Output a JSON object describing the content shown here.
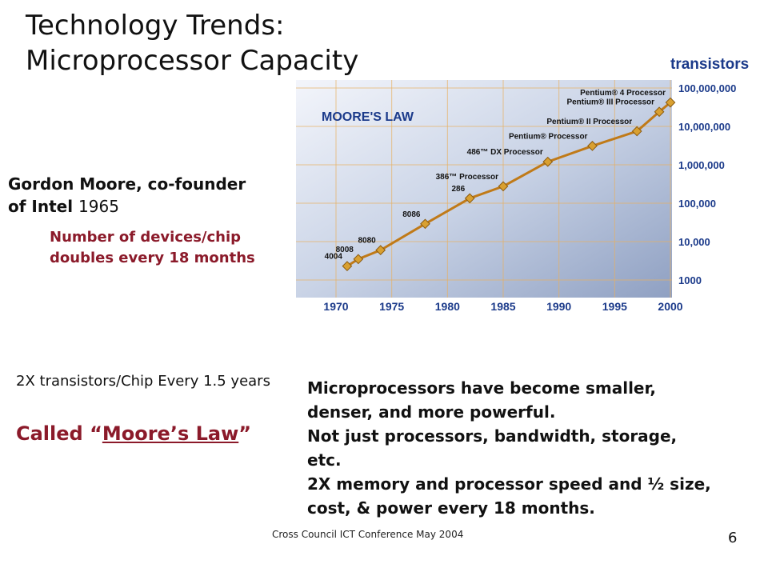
{
  "slide": {
    "title_line1": "Technology Trends:",
    "title_line2": "Microprocessor Capacity",
    "moore_heading": "Gordon Moore, co-founder of Intel",
    "moore_year": "1965",
    "moore_sub": "Number of devices/chip doubles every 18 months",
    "left_text": "2X transistors/Chip Every 1.5 years",
    "called_prefix": "Called ",
    "called_link": "Moore’s Law",
    "right_lines": [
      "Microprocessors have become smaller, denser, and more powerful.",
      "Not just processors, bandwidth, storage, etc.",
      "2X memory and processor speed and ½ size, cost, & power every 18 months."
    ],
    "footer": "Cross Council ICT Conference May 2004",
    "page_number": "6"
  },
  "chart_data": {
    "type": "line",
    "title": "MOORE'S LAW",
    "ylabel": "transistors",
    "xlabel": "",
    "x_ticks": [
      "1970",
      "1975",
      "1980",
      "1985",
      "1990",
      "1995",
      "2000"
    ],
    "y_ticks": [
      "1000",
      "10,000",
      "100,000",
      "1,000,000",
      "10,000,000",
      "100,000,000"
    ],
    "yscale": "log",
    "ylim": [
      1000,
      100000000
    ],
    "xlim": [
      1970,
      2000
    ],
    "points": [
      {
        "year": 1971,
        "transistors": 2300,
        "label": "4004"
      },
      {
        "year": 1972,
        "transistors": 3500,
        "label": "8008"
      },
      {
        "year": 1974,
        "transistors": 6000,
        "label": "8080"
      },
      {
        "year": 1978,
        "transistors": 29000,
        "label": "8086"
      },
      {
        "year": 1982,
        "transistors": 134000,
        "label": "286"
      },
      {
        "year": 1985,
        "transistors": 275000,
        "label": "386™ Processor"
      },
      {
        "year": 1989,
        "transistors": 1200000,
        "label": "486™ DX Processor"
      },
      {
        "year": 1993,
        "transistors": 3100000,
        "label": "Pentium® Processor"
      },
      {
        "year": 1997,
        "transistors": 7500000,
        "label": "Pentium® II Processor"
      },
      {
        "year": 1999,
        "transistors": 24000000,
        "label": "Pentium® III Processor"
      },
      {
        "year": 2000,
        "transistors": 42000000,
        "label": "Pentium® 4 Processor"
      }
    ],
    "colors": {
      "line": "#c07a18",
      "marker": "#d9a030",
      "axis_text": "#1b3a8a",
      "title": "#1b3a8a",
      "ylabel": "#1b3a8a"
    }
  }
}
